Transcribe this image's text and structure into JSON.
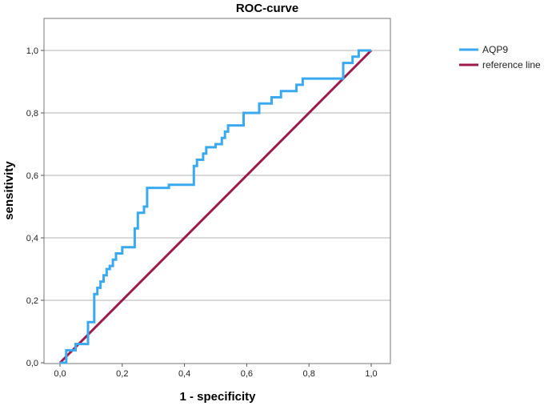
{
  "chart_data": {
    "type": "line",
    "title": "ROC-curve",
    "xlabel": "1 - specificity",
    "ylabel": "sensitivity",
    "xlim": [
      0,
      1
    ],
    "ylim": [
      0,
      1
    ],
    "xticks": [
      "0,0",
      "0,2",
      "0,4",
      "0,6",
      "0,8",
      "1,0"
    ],
    "yticks": [
      "0,0",
      "0,2",
      "0,4",
      "0,6",
      "0,8",
      "1,0"
    ],
    "grid": "horizontal",
    "legend_position": "top-right",
    "series": [
      {
        "name": "AQP9",
        "color": "#3AA9F0",
        "x": [
          0.0,
          0.02,
          0.02,
          0.03,
          0.03,
          0.05,
          0.05,
          0.09,
          0.09,
          0.11,
          0.11,
          0.12,
          0.12,
          0.13,
          0.13,
          0.14,
          0.14,
          0.15,
          0.15,
          0.16,
          0.16,
          0.17,
          0.17,
          0.18,
          0.18,
          0.2,
          0.2,
          0.24,
          0.24,
          0.25,
          0.25,
          0.27,
          0.27,
          0.28,
          0.28,
          0.29,
          0.29,
          0.35,
          0.35,
          0.43,
          0.43,
          0.44,
          0.44,
          0.46,
          0.46,
          0.47,
          0.47,
          0.48,
          0.48,
          0.5,
          0.5,
          0.52,
          0.52,
          0.53,
          0.53,
          0.54,
          0.54,
          0.55,
          0.55,
          0.59,
          0.59,
          0.64,
          0.64,
          0.68,
          0.68,
          0.71,
          0.71,
          0.76,
          0.76,
          0.78,
          0.78,
          0.91,
          0.91,
          0.94,
          0.94,
          0.96,
          0.96,
          0.98,
          0.98,
          1.0
        ],
        "y": [
          0.0,
          0.0,
          0.04,
          0.04,
          0.04,
          0.04,
          0.06,
          0.06,
          0.13,
          0.13,
          0.22,
          0.22,
          0.24,
          0.24,
          0.26,
          0.26,
          0.28,
          0.28,
          0.3,
          0.3,
          0.31,
          0.31,
          0.33,
          0.33,
          0.35,
          0.35,
          0.37,
          0.37,
          0.43,
          0.43,
          0.48,
          0.48,
          0.5,
          0.5,
          0.56,
          0.56,
          0.56,
          0.56,
          0.57,
          0.57,
          0.63,
          0.63,
          0.65,
          0.65,
          0.67,
          0.67,
          0.69,
          0.69,
          0.69,
          0.69,
          0.7,
          0.7,
          0.72,
          0.72,
          0.74,
          0.74,
          0.76,
          0.76,
          0.76,
          0.76,
          0.8,
          0.8,
          0.83,
          0.83,
          0.85,
          0.85,
          0.87,
          0.87,
          0.89,
          0.89,
          0.91,
          0.91,
          0.96,
          0.96,
          0.98,
          0.98,
          1.0,
          1.0,
          1.0,
          1.0
        ]
      },
      {
        "name": "reference line",
        "color": "#9B1B4D",
        "x": [
          0,
          1
        ],
        "y": [
          0,
          1
        ]
      }
    ]
  }
}
